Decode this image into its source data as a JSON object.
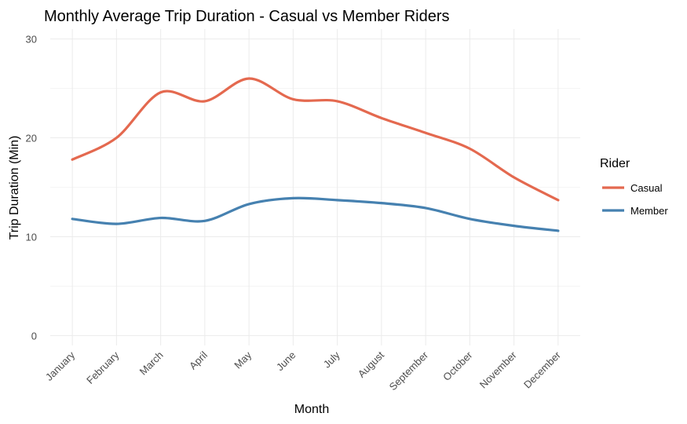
{
  "chart_data": {
    "type": "line",
    "title": "Monthly Average Trip Duration - Casual vs Member Riders",
    "xlabel": "Month",
    "ylabel": "Trip Duration (Min)",
    "ylim": [
      -1,
      31
    ],
    "yticks": [
      0,
      10,
      20,
      30
    ],
    "categories": [
      "January",
      "February",
      "March",
      "April",
      "May",
      "June",
      "July",
      "August",
      "September",
      "October",
      "November",
      "December"
    ],
    "grid": true,
    "legend": {
      "title": "Rider",
      "placement": "right"
    },
    "series": [
      {
        "name": "Casual",
        "color": "#E4694F",
        "values": [
          17.8,
          20.0,
          24.6,
          23.7,
          26.0,
          23.9,
          23.7,
          22.0,
          20.5,
          18.9,
          16.0,
          13.7
        ]
      },
      {
        "name": "Member",
        "color": "#4681B0",
        "values": [
          11.8,
          11.3,
          11.9,
          11.6,
          13.3,
          13.9,
          13.7,
          13.4,
          12.9,
          11.8,
          11.1,
          10.6
        ]
      }
    ]
  }
}
